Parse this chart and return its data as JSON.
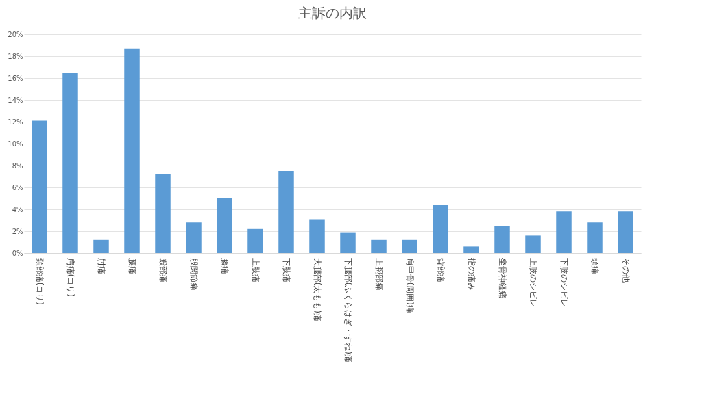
{
  "chart_data": {
    "type": "bar",
    "title": "主訴の内訳",
    "categories": [
      "頸部痛(コリ)",
      "肩痛(コリ)",
      "肘痛",
      "腰痛",
      "殿部痛",
      "股関節痛",
      "膝痛",
      "上肢痛",
      "下肢痛",
      "大腿部(太もも)痛",
      "下腿部(ふくらはぎ・すね)痛",
      "上腕部痛",
      "肩甲骨(周囲)痛",
      "背部痛",
      "指の痛み",
      "坐骨神経痛",
      "上肢のシビレ",
      "下肢のシビレ",
      "頭痛",
      "その他"
    ],
    "values": [
      12.1,
      16.5,
      1.2,
      18.7,
      7.2,
      2.8,
      5.0,
      2.2,
      7.5,
      3.1,
      1.9,
      1.2,
      1.2,
      4.4,
      0.6,
      2.5,
      1.6,
      3.8,
      2.8,
      3.8
    ],
    "color": "#5b9bd5",
    "ylim": [
      0,
      20
    ],
    "yticks": [
      {
        "value": 0,
        "label": "0%"
      },
      {
        "value": 2,
        "label": "2%"
      },
      {
        "value": 4,
        "label": "4%"
      },
      {
        "value": 6,
        "label": "6%"
      },
      {
        "value": 8,
        "label": "8%"
      },
      {
        "value": 10,
        "label": "10%"
      },
      {
        "value": 12,
        "label": "12%"
      },
      {
        "value": 14,
        "label": "14%"
      },
      {
        "value": 16,
        "label": "16%"
      },
      {
        "value": 18,
        "label": "18%"
      },
      {
        "value": 20,
        "label": "20%"
      }
    ],
    "grid": "y"
  }
}
